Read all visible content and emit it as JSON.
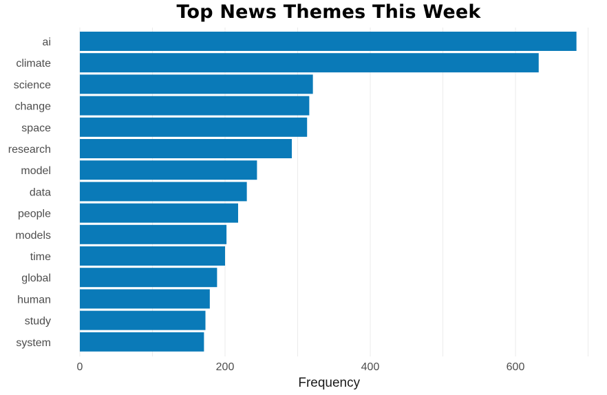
{
  "chart_data": {
    "type": "bar",
    "orientation": "horizontal",
    "title": "Top News Themes This Week",
    "xlabel": "Frequency",
    "ylabel": "",
    "categories": [
      "ai",
      "climate",
      "science",
      "change",
      "space",
      "research",
      "model",
      "data",
      "people",
      "models",
      "time",
      "global",
      "human",
      "study",
      "system"
    ],
    "values": [
      684,
      632,
      321,
      316,
      313,
      292,
      244,
      230,
      218,
      202,
      200,
      189,
      179,
      173,
      171
    ],
    "xlim": [
      0,
      700
    ],
    "xticks": [
      0,
      200,
      400,
      600
    ],
    "grid": true,
    "legend": "none",
    "colors": {
      "bar": "#0a7ab8",
      "grid": "#ebebeb"
    }
  }
}
